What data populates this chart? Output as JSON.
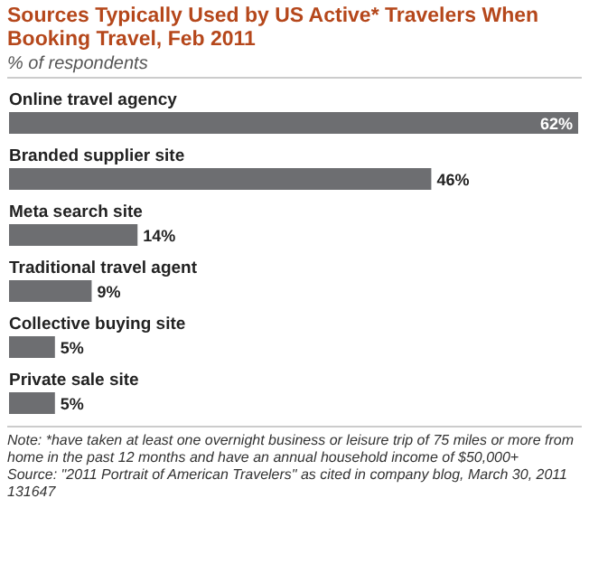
{
  "chart_data": {
    "type": "bar",
    "orientation": "horizontal",
    "title": "Sources Typically Used by US Active* Travelers When Booking Travel, Feb 2011",
    "subtitle": "% of respondents",
    "categories": [
      "Online travel agency",
      "Branded supplier site",
      "Meta search site",
      "Traditional travel agent",
      "Collective buying site",
      "Private sale site"
    ],
    "values": [
      62,
      46,
      14,
      9,
      5,
      5
    ],
    "value_labels": [
      "62%",
      "46%",
      "14%",
      "9%",
      "5%",
      "5%"
    ],
    "color": "#6d6e71",
    "annotations": [
      "Note: *have taken at least one overnight business or leisure trip of 75 miles or more from home in the past 12 months and have an annual household income of $50,000+",
      "Source: \"2011 Portrait of American Travelers\" as cited in company blog, March 30, 2011",
      "131647"
    ]
  }
}
